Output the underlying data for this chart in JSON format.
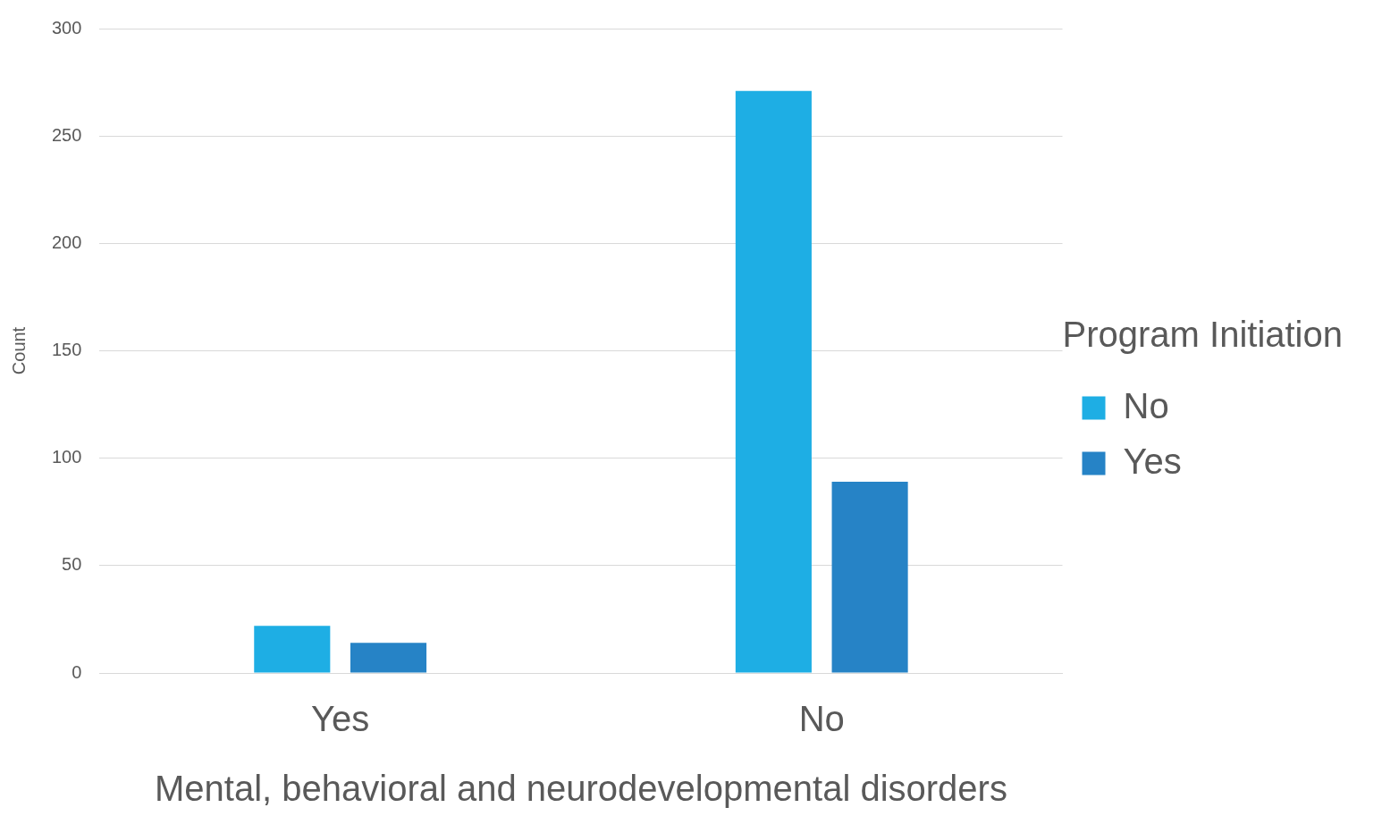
{
  "chart_data": {
    "type": "bar",
    "xlabel": "Mental, behavioral and neurodevelopmental disorders",
    "ylabel": "Count",
    "legend_title": "Program Initiation",
    "categories": [
      "Yes",
      "No"
    ],
    "series": [
      {
        "name": "No",
        "color": "#1eaee4",
        "values": [
          22,
          271
        ]
      },
      {
        "name": "Yes",
        "color": "#2683c6",
        "values": [
          14,
          89
        ]
      }
    ],
    "ylim": [
      0,
      300
    ],
    "yticks": [
      0,
      50,
      100,
      150,
      200,
      250,
      300
    ],
    "grid": "y",
    "legend": "right"
  }
}
